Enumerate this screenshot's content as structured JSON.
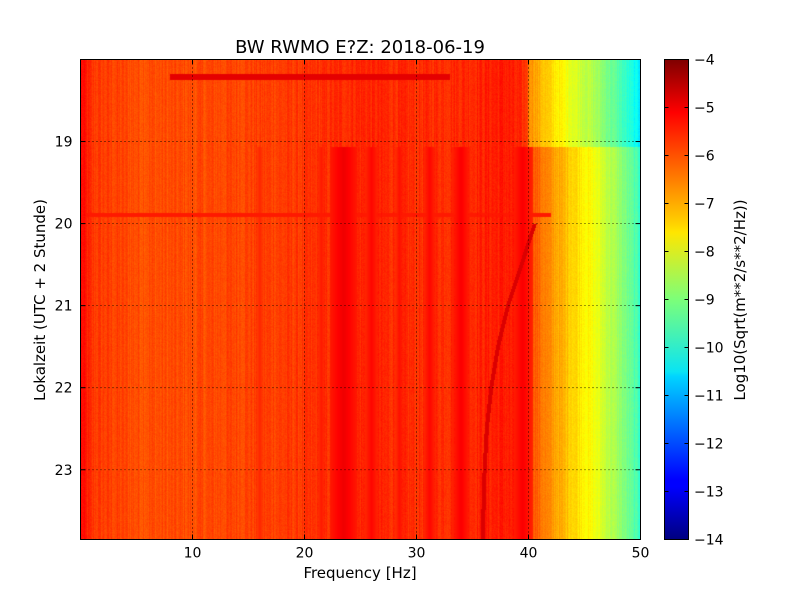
{
  "chart_data": {
    "type": "heatmap",
    "title": "BW RWMO E?Z: 2018-06-19",
    "xlabel": "Frequency [Hz]",
    "ylabel": "Lokalzeit (UTC + 2 Stunde)",
    "xlim": [
      0,
      50
    ],
    "ylim": [
      18.0,
      23.85
    ],
    "y_inverted": true,
    "grid": true,
    "colormap": "jet",
    "x_ticks": [
      10,
      20,
      30,
      40,
      50
    ],
    "y_ticks": [
      19,
      20,
      21,
      22,
      23
    ],
    "colorbar": {
      "label": "Log10(Sqrt(m**2/s**2/Hz))",
      "range": [
        -14,
        -4
      ],
      "ticks": [
        -4,
        -5,
        -6,
        -7,
        -8,
        -9,
        -10,
        -11,
        -12,
        -13,
        -14
      ]
    },
    "baseline_profile": {
      "frequency_hz": [
        0,
        1,
        5,
        10,
        15,
        20,
        25,
        30,
        35,
        38,
        40,
        41,
        42,
        43,
        44,
        45,
        46,
        47,
        48,
        49,
        50
      ],
      "log10_value": [
        -5.3,
        -5.8,
        -6.0,
        -6.0,
        -5.9,
        -5.8,
        -5.6,
        -5.7,
        -5.6,
        -5.5,
        -5.8,
        -6.3,
        -6.7,
        -7.0,
        -7.3,
        -7.6,
        -7.9,
        -8.3,
        -8.7,
        -9.2,
        -9.7
      ]
    },
    "vertical_lines": [
      {
        "frequency_hz": 23.5,
        "width_hz": 1.2,
        "log10_value": -5.1
      },
      {
        "frequency_hz": 21.5,
        "width_hz": 0.5,
        "log10_value": -5.5
      },
      {
        "frequency_hz": 26.0,
        "width_hz": 0.7,
        "log10_value": -5.3
      },
      {
        "frequency_hz": 28.5,
        "width_hz": 0.5,
        "log10_value": -5.4
      },
      {
        "frequency_hz": 31.2,
        "width_hz": 0.6,
        "log10_value": -5.3
      },
      {
        "frequency_hz": 34.0,
        "width_hz": 0.8,
        "log10_value": -5.2
      },
      {
        "frequency_hz": 39.5,
        "width_hz": 0.9,
        "log10_value": -5.2
      },
      {
        "frequency_hz": 16.0,
        "width_hz": 0.4,
        "log10_value": -5.6
      }
    ],
    "horizontal_bands": [
      {
        "time_start": 18.17,
        "time_end": 18.25,
        "freq_start": 8,
        "freq_end": 33,
        "log10_value": -5.0
      },
      {
        "time_start": 19.87,
        "time_end": 19.92,
        "freq_start": 0,
        "freq_end": 42,
        "log10_value": -5.5
      }
    ],
    "gap": {
      "time_start": 18.0,
      "time_end": 19.06,
      "high_freq_start": 40,
      "description": "weaker energy above 40 Hz before 19:04"
    },
    "drifting_line": {
      "time": [
        20.0,
        20.5,
        21.0,
        21.5,
        22.0,
        22.5,
        23.0,
        23.5,
        23.85
      ],
      "frequency_hz": [
        40.6,
        39.4,
        38.2,
        37.3,
        36.7,
        36.3,
        36.1,
        36.0,
        36.0
      ],
      "log10_value": -4.9
    }
  }
}
